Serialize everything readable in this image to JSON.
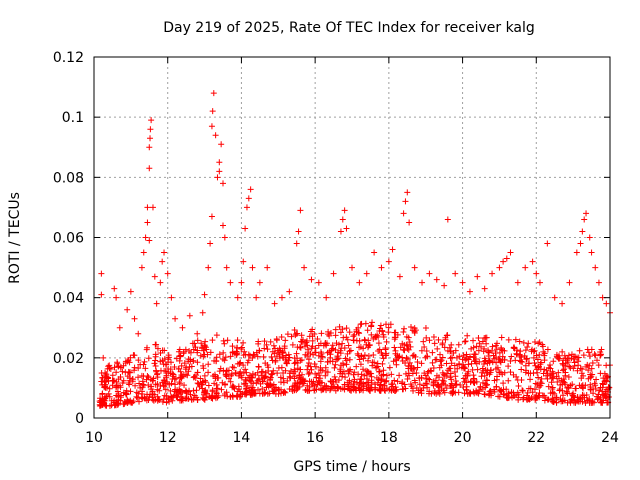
{
  "chart_data": {
    "type": "scatter",
    "title": "Day 219 of 2025, Rate Of TEC Index for receiver kalg",
    "xlabel": "GPS time / hours",
    "ylabel": "ROTI / TECUs",
    "xlim": [
      10,
      24
    ],
    "ylim": [
      0,
      0.12
    ],
    "xticks": [
      10,
      12,
      14,
      16,
      18,
      20,
      22,
      24
    ],
    "xtick_labels": [
      "10",
      "12",
      "14",
      "16",
      "18",
      "20",
      "22",
      "24"
    ],
    "yticks": [
      0,
      0.02,
      0.04,
      0.06,
      0.08,
      0.1,
      0.12
    ],
    "ytick_labels": [
      "0",
      "0.02",
      "0.04",
      "0.06",
      "0.08",
      "0.1",
      "0.12"
    ],
    "grid": true,
    "marker": "+",
    "color": "#ff0000",
    "series": [
      {
        "name": "ROTI",
        "points": [
          [
            10.2,
            0.048
          ],
          [
            10.2,
            0.041
          ],
          [
            10.25,
            0.02
          ],
          [
            10.3,
            0.015
          ],
          [
            10.35,
            0.01
          ],
          [
            10.4,
            0.008
          ],
          [
            10.55,
            0.043
          ],
          [
            10.6,
            0.04
          ],
          [
            10.7,
            0.03
          ],
          [
            10.9,
            0.036
          ],
          [
            11.0,
            0.042
          ],
          [
            11.1,
            0.033
          ],
          [
            11.2,
            0.028
          ],
          [
            11.3,
            0.05
          ],
          [
            11.35,
            0.055
          ],
          [
            11.4,
            0.06
          ],
          [
            11.45,
            0.065
          ],
          [
            11.45,
            0.07
          ],
          [
            11.5,
            0.083
          ],
          [
            11.5,
            0.09
          ],
          [
            11.52,
            0.093
          ],
          [
            11.53,
            0.096
          ],
          [
            11.55,
            0.099
          ],
          [
            11.5,
            0.059
          ],
          [
            11.6,
            0.07
          ],
          [
            11.65,
            0.047
          ],
          [
            11.7,
            0.038
          ],
          [
            11.8,
            0.045
          ],
          [
            11.85,
            0.052
          ],
          [
            11.9,
            0.055
          ],
          [
            12.0,
            0.048
          ],
          [
            12.1,
            0.04
          ],
          [
            12.2,
            0.033
          ],
          [
            12.4,
            0.03
          ],
          [
            12.6,
            0.034
          ],
          [
            12.8,
            0.028
          ],
          [
            12.95,
            0.035
          ],
          [
            13.0,
            0.041
          ],
          [
            13.1,
            0.05
          ],
          [
            13.15,
            0.058
          ],
          [
            13.2,
            0.067
          ],
          [
            13.2,
            0.097
          ],
          [
            13.22,
            0.102
          ],
          [
            13.25,
            0.108
          ],
          [
            13.3,
            0.094
          ],
          [
            13.35,
            0.08
          ],
          [
            13.4,
            0.082
          ],
          [
            13.4,
            0.085
          ],
          [
            13.45,
            0.091
          ],
          [
            13.5,
            0.078
          ],
          [
            13.5,
            0.064
          ],
          [
            13.55,
            0.06
          ],
          [
            13.6,
            0.05
          ],
          [
            13.7,
            0.045
          ],
          [
            13.9,
            0.04
          ],
          [
            14.0,
            0.045
          ],
          [
            14.05,
            0.052
          ],
          [
            14.1,
            0.063
          ],
          [
            14.15,
            0.07
          ],
          [
            14.2,
            0.073
          ],
          [
            14.25,
            0.076
          ],
          [
            14.3,
            0.05
          ],
          [
            14.4,
            0.04
          ],
          [
            14.5,
            0.045
          ],
          [
            14.7,
            0.05
          ],
          [
            14.9,
            0.038
          ],
          [
            15.1,
            0.04
          ],
          [
            15.3,
            0.042
          ],
          [
            15.5,
            0.058
          ],
          [
            15.55,
            0.062
          ],
          [
            15.6,
            0.069
          ],
          [
            15.7,
            0.05
          ],
          [
            15.9,
            0.046
          ],
          [
            16.1,
            0.045
          ],
          [
            16.3,
            0.04
          ],
          [
            16.5,
            0.048
          ],
          [
            16.7,
            0.062
          ],
          [
            16.75,
            0.066
          ],
          [
            16.8,
            0.069
          ],
          [
            16.85,
            0.063
          ],
          [
            17.0,
            0.05
          ],
          [
            17.2,
            0.045
          ],
          [
            17.4,
            0.048
          ],
          [
            17.6,
            0.055
          ],
          [
            17.8,
            0.05
          ],
          [
            18.0,
            0.052
          ],
          [
            18.1,
            0.056
          ],
          [
            18.3,
            0.047
          ],
          [
            18.4,
            0.068
          ],
          [
            18.45,
            0.072
          ],
          [
            18.5,
            0.075
          ],
          [
            18.55,
            0.065
          ],
          [
            18.7,
            0.05
          ],
          [
            18.9,
            0.045
          ],
          [
            19.1,
            0.048
          ],
          [
            19.3,
            0.046
          ],
          [
            19.5,
            0.044
          ],
          [
            19.6,
            0.066
          ],
          [
            19.8,
            0.048
          ],
          [
            20.0,
            0.045
          ],
          [
            20.2,
            0.042
          ],
          [
            20.4,
            0.047
          ],
          [
            20.6,
            0.043
          ],
          [
            20.8,
            0.048
          ],
          [
            21.0,
            0.05
          ],
          [
            21.1,
            0.052
          ],
          [
            21.2,
            0.053
          ],
          [
            21.3,
            0.055
          ],
          [
            21.5,
            0.045
          ],
          [
            21.7,
            0.05
          ],
          [
            21.9,
            0.052
          ],
          [
            22.0,
            0.048
          ],
          [
            22.1,
            0.045
          ],
          [
            22.3,
            0.058
          ],
          [
            22.5,
            0.04
          ],
          [
            22.7,
            0.038
          ],
          [
            22.9,
            0.045
          ],
          [
            23.1,
            0.055
          ],
          [
            23.2,
            0.058
          ],
          [
            23.25,
            0.062
          ],
          [
            23.3,
            0.066
          ],
          [
            23.35,
            0.068
          ],
          [
            23.45,
            0.06
          ],
          [
            23.5,
            0.055
          ],
          [
            23.6,
            0.05
          ],
          [
            23.7,
            0.045
          ],
          [
            23.8,
            0.04
          ],
          [
            23.9,
            0.038
          ],
          [
            24.0,
            0.035
          ]
        ],
        "baseline": {
          "x_start": 10.15,
          "x_end": 24.0,
          "count": 1900,
          "profile": [
            [
              10.15,
              0.004,
              0.016
            ],
            [
              10.5,
              0.004,
              0.018
            ],
            [
              11.0,
              0.005,
              0.022
            ],
            [
              11.5,
              0.006,
              0.026
            ],
            [
              12.0,
              0.005,
              0.022
            ],
            [
              12.5,
              0.006,
              0.024
            ],
            [
              13.0,
              0.006,
              0.027
            ],
            [
              13.5,
              0.007,
              0.03
            ],
            [
              14.0,
              0.007,
              0.025
            ],
            [
              14.5,
              0.008,
              0.026
            ],
            [
              15.0,
              0.008,
              0.028
            ],
            [
              15.5,
              0.009,
              0.03
            ],
            [
              16.0,
              0.009,
              0.03
            ],
            [
              16.5,
              0.009,
              0.03
            ],
            [
              17.0,
              0.009,
              0.032
            ],
            [
              17.5,
              0.009,
              0.032
            ],
            [
              18.0,
              0.009,
              0.032
            ],
            [
              18.5,
              0.009,
              0.031
            ],
            [
              19.0,
              0.008,
              0.03
            ],
            [
              19.5,
              0.008,
              0.028
            ],
            [
              20.0,
              0.008,
              0.028
            ],
            [
              20.5,
              0.008,
              0.028
            ],
            [
              21.0,
              0.007,
              0.027
            ],
            [
              21.5,
              0.006,
              0.026
            ],
            [
              22.0,
              0.006,
              0.026
            ],
            [
              22.5,
              0.005,
              0.022
            ],
            [
              23.0,
              0.005,
              0.022
            ],
            [
              23.5,
              0.005,
              0.024
            ],
            [
              24.0,
              0.005,
              0.022
            ]
          ]
        }
      }
    ]
  }
}
